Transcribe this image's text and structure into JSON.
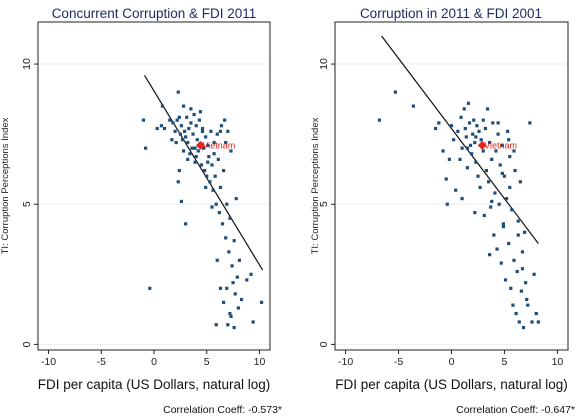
{
  "chart_data": [
    {
      "type": "scatter",
      "title": "Concurrent Corruption & FDI 2011",
      "xlabel": "FDI per capita (US Dollars, natural log)",
      "ylabel": "TI: Corruption Perceptions Index",
      "xlim": [
        -11,
        11
      ],
      "ylim": [
        -0.2,
        11.5
      ],
      "xticks": [
        -10,
        -5,
        0,
        5,
        10
      ],
      "yticks": [
        0,
        5,
        10
      ],
      "grid": true,
      "annotation": "Correlation Coeff: -0.573*",
      "highlight": {
        "label": "Vietnam",
        "x": 4.4,
        "y": 7.1,
        "color": "#e8231c"
      },
      "fit_line": {
        "x": [
          -0.9,
          10.3
        ],
        "y": [
          9.6,
          2.65
        ]
      },
      "points": [
        [
          -1.0,
          8.0
        ],
        [
          -0.8,
          7.0
        ],
        [
          0.3,
          7.7
        ],
        [
          0.8,
          8.5
        ],
        [
          0.7,
          7.8
        ],
        [
          1.0,
          7.7
        ],
        [
          1.5,
          8.0
        ],
        [
          1.8,
          7.9
        ],
        [
          2.0,
          7.6
        ],
        [
          2.1,
          7.2
        ],
        [
          2.3,
          9.0
        ],
        [
          2.4,
          8.1
        ],
        [
          2.5,
          7.5
        ],
        [
          2.6,
          7.8
        ],
        [
          2.7,
          7.3
        ],
        [
          2.8,
          8.5
        ],
        [
          2.9,
          7.6
        ],
        [
          3.0,
          7.4
        ],
        [
          3.1,
          8.1
        ],
        [
          3.2,
          7.2
        ],
        [
          3.3,
          7.7
        ],
        [
          3.4,
          6.8
        ],
        [
          3.5,
          8.4
        ],
        [
          3.6,
          7.0
        ],
        [
          3.7,
          7.5
        ],
        [
          3.8,
          8.2
        ],
        [
          3.9,
          6.5
        ],
        [
          4.0,
          7.8
        ],
        [
          4.1,
          7.3
        ],
        [
          4.2,
          6.9
        ],
        [
          4.3,
          8.0
        ],
        [
          4.5,
          6.4
        ],
        [
          4.6,
          7.6
        ],
        [
          4.7,
          7.0
        ],
        [
          4.8,
          6.2
        ],
        [
          4.9,
          7.4
        ],
        [
          5.0,
          6.0
        ],
        [
          5.1,
          7.1
        ],
        [
          5.2,
          6.7
        ],
        [
          5.3,
          5.8
        ],
        [
          5.4,
          7.6
        ],
        [
          5.5,
          6.4
        ],
        [
          5.6,
          5.5
        ],
        [
          5.7,
          7.2
        ],
        [
          5.8,
          6.0
        ],
        [
          5.9,
          5.0
        ],
        [
          6.0,
          7.5
        ],
        [
          6.1,
          6.6
        ],
        [
          6.2,
          4.7
        ],
        [
          6.3,
          5.6
        ],
        [
          6.4,
          7.8
        ],
        [
          6.5,
          4.3
        ],
        [
          6.6,
          6.2
        ],
        [
          6.7,
          8.0
        ],
        [
          6.8,
          3.8
        ],
        [
          6.9,
          5.0
        ],
        [
          7.0,
          7.6
        ],
        [
          7.1,
          3.3
        ],
        [
          7.2,
          4.5
        ],
        [
          7.3,
          6.9
        ],
        [
          7.4,
          2.8
        ],
        [
          7.5,
          2.2
        ],
        [
          7.6,
          3.7
        ],
        [
          7.7,
          1.8
        ],
        [
          7.8,
          5.2
        ],
        [
          7.9,
          2.4
        ],
        [
          8.0,
          1.3
        ],
        [
          8.1,
          3.0
        ],
        [
          6.3,
          2.0
        ],
        [
          6.6,
          1.5
        ],
        [
          7.0,
          0.7
        ],
        [
          7.3,
          1.0
        ],
        [
          7.6,
          0.6
        ],
        [
          8.3,
          1.6
        ],
        [
          8.8,
          2.3
        ],
        [
          9.2,
          2.5
        ],
        [
          9.4,
          0.8
        ],
        [
          10.2,
          1.5
        ],
        [
          -0.4,
          2.0
        ],
        [
          2.6,
          5.1
        ],
        [
          2.3,
          5.8
        ],
        [
          3.0,
          4.3
        ],
        [
          5.9,
          0.7
        ],
        [
          2.2,
          8.0
        ],
        [
          1.7,
          7.3
        ],
        [
          3.5,
          7.9
        ],
        [
          4.4,
          8.3
        ],
        [
          4.9,
          5.6
        ],
        [
          5.5,
          4.9
        ],
        [
          6.0,
          3.0
        ],
        [
          6.9,
          2.0
        ],
        [
          7.2,
          1.1
        ],
        [
          4.0,
          6.7
        ],
        [
          3.2,
          6.6
        ],
        [
          2.8,
          6.9
        ],
        [
          6.8,
          7.2
        ],
        [
          6.3,
          7.6
        ],
        [
          5.7,
          6.8
        ],
        [
          4.6,
          7.7
        ],
        [
          3.9,
          7.0
        ],
        [
          5.1,
          6.5
        ],
        [
          2.4,
          6.2
        ]
      ]
    },
    {
      "type": "scatter",
      "title": "Corruption in 2011 & FDI 2001",
      "xlabel": "FDI per capita (US Dollars, natural log)",
      "ylabel": "TI: Corruption Perceptions Index",
      "xlim": [
        -11,
        11
      ],
      "ylim": [
        -0.2,
        11.5
      ],
      "xticks": [
        -10,
        -5,
        0,
        5,
        10
      ],
      "yticks": [
        0,
        5,
        10
      ],
      "grid": true,
      "annotation": "Correlation Coeff: -0.647*",
      "highlight": {
        "label": "Vietnam",
        "x": 2.9,
        "y": 7.1,
        "color": "#e8231c"
      },
      "fit_line": {
        "x": [
          -6.6,
          8.2
        ],
        "y": [
          11.0,
          3.6
        ]
      },
      "points": [
        [
          -6.8,
          8.0
        ],
        [
          -5.3,
          9.0
        ],
        [
          -3.6,
          8.5
        ],
        [
          -1.5,
          7.7
        ],
        [
          -1.2,
          7.9
        ],
        [
          -0.8,
          6.9
        ],
        [
          -0.5,
          5.9
        ],
        [
          -0.4,
          5.0
        ],
        [
          0.0,
          7.8
        ],
        [
          0.2,
          7.3
        ],
        [
          0.4,
          5.5
        ],
        [
          0.6,
          7.6
        ],
        [
          0.8,
          6.6
        ],
        [
          1.0,
          7.0
        ],
        [
          1.2,
          8.4
        ],
        [
          1.3,
          7.7
        ],
        [
          1.4,
          7.4
        ],
        [
          1.5,
          6.3
        ],
        [
          1.6,
          8.6
        ],
        [
          1.7,
          7.9
        ],
        [
          1.8,
          7.1
        ],
        [
          1.9,
          6.8
        ],
        [
          2.0,
          7.5
        ],
        [
          2.1,
          8.0
        ],
        [
          2.2,
          7.2
        ],
        [
          2.3,
          6.5
        ],
        [
          2.4,
          7.8
        ],
        [
          2.5,
          6.0
        ],
        [
          2.6,
          7.6
        ],
        [
          2.7,
          5.6
        ],
        [
          2.8,
          7.3
        ],
        [
          3.0,
          6.9
        ],
        [
          3.1,
          4.6
        ],
        [
          3.2,
          7.7
        ],
        [
          3.3,
          6.2
        ],
        [
          3.4,
          8.4
        ],
        [
          3.5,
          5.8
        ],
        [
          3.6,
          7.2
        ],
        [
          3.7,
          4.9
        ],
        [
          3.8,
          6.6
        ],
        [
          3.9,
          7.9
        ],
        [
          4.0,
          3.9
        ],
        [
          4.1,
          5.4
        ],
        [
          4.2,
          6.9
        ],
        [
          4.3,
          3.4
        ],
        [
          4.4,
          7.5
        ],
        [
          4.5,
          5.0
        ],
        [
          4.6,
          6.4
        ],
        [
          4.7,
          2.9
        ],
        [
          4.8,
          7.1
        ],
        [
          4.9,
          4.2
        ],
        [
          5.0,
          6.0
        ],
        [
          5.1,
          2.3
        ],
        [
          5.2,
          5.2
        ],
        [
          5.3,
          7.6
        ],
        [
          5.4,
          3.6
        ],
        [
          5.5,
          6.7
        ],
        [
          5.6,
          2.0
        ],
        [
          5.7,
          4.8
        ],
        [
          5.8,
          1.4
        ],
        [
          5.9,
          3.0
        ],
        [
          6.0,
          6.2
        ],
        [
          6.1,
          1.1
        ],
        [
          6.2,
          2.6
        ],
        [
          6.3,
          4.4
        ],
        [
          6.4,
          0.8
        ],
        [
          6.5,
          5.8
        ],
        [
          6.6,
          1.9
        ],
        [
          6.7,
          3.3
        ],
        [
          6.8,
          0.6
        ],
        [
          7.0,
          2.2
        ],
        [
          7.2,
          1.4
        ],
        [
          7.4,
          7.9
        ],
        [
          7.6,
          0.8
        ],
        [
          7.8,
          2.5
        ],
        [
          8.0,
          1.1
        ],
        [
          8.2,
          0.8
        ],
        [
          5.5,
          5.6
        ],
        [
          4.9,
          4.3
        ],
        [
          3.6,
          3.2
        ],
        [
          2.2,
          4.7
        ],
        [
          1.0,
          5.2
        ],
        [
          5.9,
          6.9
        ],
        [
          6.3,
          3.9
        ],
        [
          6.9,
          4.0
        ],
        [
          4.4,
          7.9
        ],
        [
          3.0,
          8.0
        ],
        [
          2.3,
          7.4
        ],
        [
          1.5,
          7.0
        ],
        [
          0.9,
          8.1
        ],
        [
          -0.2,
          6.6
        ],
        [
          3.8,
          5.1
        ],
        [
          4.8,
          6.1
        ],
        [
          5.4,
          7.3
        ],
        [
          6.7,
          2.7
        ],
        [
          7.1,
          1.6
        ]
      ]
    }
  ]
}
